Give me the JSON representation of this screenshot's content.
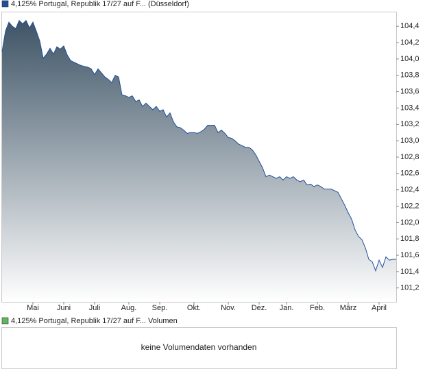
{
  "chart_data": [
    {
      "type": "area-line",
      "series": [
        {
          "name": "4,125% Portugal, Republik 17/27 auf F... (Düsseldorf)",
          "color": "#1f4e9c",
          "values": [
            104.09,
            104.34,
            104.45,
            104.4,
            104.37,
            104.47,
            104.43,
            104.47,
            104.38,
            104.45,
            104.34,
            104.22,
            104.01,
            104.06,
            104.13,
            104.06,
            104.15,
            104.12,
            104.16,
            104.05,
            103.98,
            103.96,
            103.94,
            103.92,
            103.91,
            103.9,
            103.88,
            103.81,
            103.88,
            103.83,
            103.78,
            103.75,
            103.71,
            103.8,
            103.78,
            103.56,
            103.55,
            103.53,
            103.55,
            103.48,
            103.5,
            103.42,
            103.46,
            103.42,
            103.38,
            103.42,
            103.36,
            103.38,
            103.29,
            103.34,
            103.23,
            103.17,
            103.16,
            103.13,
            103.09,
            103.1,
            103.1,
            103.09,
            103.11,
            103.14,
            103.19,
            103.19,
            103.19,
            103.1,
            103.13,
            103.09,
            103.04,
            103.03,
            103.0,
            102.96,
            102.94,
            102.92,
            102.92,
            102.89,
            102.83,
            102.75,
            102.67,
            102.56,
            102.58,
            102.56,
            102.54,
            102.56,
            102.52,
            102.56,
            102.54,
            102.56,
            102.52,
            102.5,
            102.52,
            102.46,
            102.47,
            102.44,
            102.46,
            102.44,
            102.41,
            102.41,
            102.41,
            102.39,
            102.37,
            102.29,
            102.21,
            102.12,
            102.04,
            101.91,
            101.83,
            101.79,
            101.69,
            101.55,
            101.52,
            101.41,
            101.54,
            101.45,
            101.58,
            101.54,
            101.55,
            101.55
          ]
        }
      ],
      "categories": [
        null,
        null,
        null,
        null,
        null,
        null,
        null,
        null,
        null,
        "Mai",
        null,
        null,
        null,
        null,
        null,
        null,
        null,
        null,
        "Juni",
        null,
        null,
        null,
        null,
        null,
        null,
        null,
        null,
        "Juli",
        null,
        null,
        null,
        null,
        null,
        null,
        null,
        null,
        null,
        "Aug.",
        null,
        null,
        null,
        null,
        null,
        null,
        null,
        null,
        "Sep.",
        null,
        null,
        null,
        null,
        null,
        null,
        null,
        null,
        null,
        "Okt.",
        null,
        null,
        null,
        null,
        null,
        null,
        null,
        null,
        null,
        "Nov.",
        null,
        null,
        null,
        null,
        null,
        null,
        null,
        null,
        "Dez.",
        null,
        null,
        null,
        null,
        null,
        null,
        null,
        "Jan.",
        null,
        null,
        null,
        null,
        null,
        null,
        null,
        null,
        "Feb.",
        null,
        null,
        null,
        null,
        null,
        null,
        null,
        null,
        "März",
        null,
        null,
        null,
        null,
        null,
        null,
        null,
        null,
        "April",
        null,
        null,
        null,
        null,
        null
      ],
      "ylim": [
        101.03,
        104.57
      ],
      "yticks": [
        {
          "value": 101.2,
          "label": "101,2"
        },
        {
          "value": 101.4,
          "label": "101,4"
        },
        {
          "value": 101.6,
          "label": "101,6"
        },
        {
          "value": 101.8,
          "label": "101,8"
        },
        {
          "value": 102.0,
          "label": "102,0"
        },
        {
          "value": 102.2,
          "label": "102,2"
        },
        {
          "value": 102.4,
          "label": "102,4"
        },
        {
          "value": 102.6,
          "label": "102,6"
        },
        {
          "value": 102.8,
          "label": "102,8"
        },
        {
          "value": 103.0,
          "label": "103,0"
        },
        {
          "value": 103.2,
          "label": "103,2"
        },
        {
          "value": 103.4,
          "label": "103,4"
        },
        {
          "value": 103.6,
          "label": "103,6"
        },
        {
          "value": 103.8,
          "label": "103,8"
        },
        {
          "value": 104.0,
          "label": "104,0"
        },
        {
          "value": 104.2,
          "label": "104,2"
        },
        {
          "value": 104.4,
          "label": "104,4"
        }
      ],
      "grid": false
    },
    {
      "type": "volume",
      "legend": "4,125% Portugal, Republik 17/27 auf F... Volumen",
      "color": "#5cb85c",
      "message": "keine Volumendaten vorhanden"
    }
  ]
}
